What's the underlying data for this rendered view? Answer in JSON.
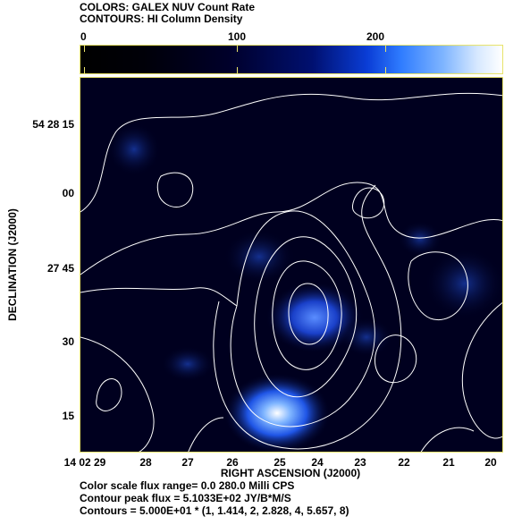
{
  "header": {
    "colors_line": "COLORS: GALEX NUV Count Rate",
    "contours_line": "CONTOURS: HI Column Density"
  },
  "colorbar": {
    "ticks": [
      "0",
      "100",
      "200"
    ],
    "colormap": [
      "#000000",
      "#001070",
      "#0a3dd6",
      "#2f7cff",
      "#ffffff"
    ]
  },
  "axes": {
    "x_title": "RIGHT ASCENSION (J2000)",
    "y_title": "DECLINATION (J2000)",
    "x_ticks": [
      "14 02 29",
      "28",
      "27",
      "26",
      "25",
      "24",
      "23",
      "22",
      "21",
      "20"
    ],
    "y_ticks": [
      "54 28 15",
      "00",
      "27 45",
      "30",
      "15"
    ]
  },
  "footer": {
    "line1": "Color scale flux range= 0.0 280.0 Milli CPS",
    "line2": "Contour peak flux =  5.1033E+02 JY/B*M/S",
    "line3": "Contours = 5.000E+01 * (1, 1.414, 2, 2.828, 4, 5.657, 8)"
  },
  "style": {
    "frame_color": "#e8e36a",
    "contour_color": "#ffffff",
    "background": "#00001f"
  }
}
